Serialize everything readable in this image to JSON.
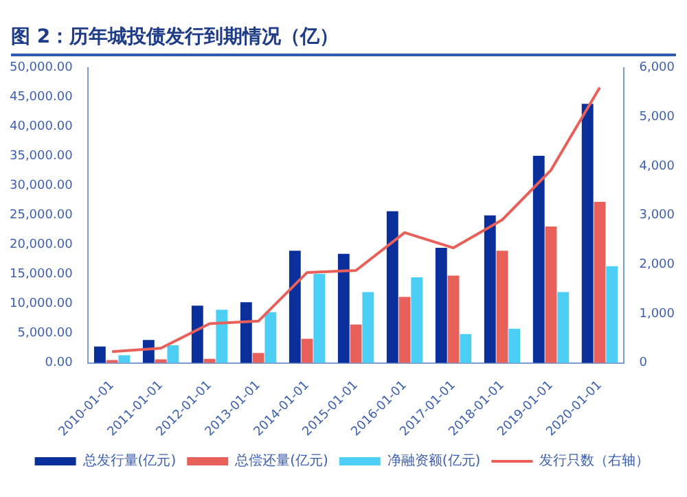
{
  "chart_data": {
    "type": "bar",
    "title": "图 2：历年城投债发行到期情况（亿）",
    "categories": [
      "2010-01-01",
      "2011-01-01",
      "2012-01-01",
      "2013-01-01",
      "2014-01-01",
      "2015-01-01",
      "2016-01-01",
      "2017-01-01",
      "2018-01-01",
      "2019-01-01",
      "2020-01-01"
    ],
    "series": [
      {
        "name": "总发行量(亿元)",
        "color": "#0a2f9a",
        "values": [
          2800,
          3900,
          9700,
          10300,
          19000,
          18500,
          25700,
          19500,
          25000,
          35100,
          43900
        ]
      },
      {
        "name": "总偿还量(亿元)",
        "color": "#e8605a",
        "values": [
          500,
          600,
          700,
          1700,
          4100,
          6500,
          11200,
          14800,
          19000,
          23100,
          27300
        ]
      },
      {
        "name": "净融资额(亿元)",
        "color": "#4dcff5",
        "values": [
          1300,
          3000,
          9000,
          8600,
          15100,
          12000,
          14500,
          4900,
          5800,
          12000,
          16400
        ]
      },
      {
        "name": "发行只数（右轴）",
        "type": "line",
        "axis": "y2",
        "color": "#e8605a",
        "values": [
          230,
          300,
          800,
          850,
          1840,
          1880,
          2650,
          2340,
          2910,
          3920,
          5600
        ]
      }
    ],
    "ylim": [
      0,
      50000
    ],
    "yticks": [
      {
        "value": 0,
        "label": "0.00"
      },
      {
        "value": 5000,
        "label": "5,000.00"
      },
      {
        "value": 10000,
        "label": "10,000.00"
      },
      {
        "value": 15000,
        "label": "15,000.00"
      },
      {
        "value": 20000,
        "label": "20,000.00"
      },
      {
        "value": 25000,
        "label": "25,000.00"
      },
      {
        "value": 30000,
        "label": "30,000.00"
      },
      {
        "value": 35000,
        "label": "35,000.00"
      },
      {
        "value": 40000,
        "label": "40,000.00"
      },
      {
        "value": 45000,
        "label": "45,000.00"
      },
      {
        "value": 50000,
        "label": "50,000.00"
      }
    ],
    "y2lim": [
      0,
      6000
    ],
    "y2ticks": [
      0,
      {
        "value": 1000,
        "label": "1,000"
      },
      {
        "value": 2000,
        "label": "2,000"
      },
      {
        "value": 3000,
        "label": "3,000"
      },
      {
        "value": 4000,
        "label": "4,000"
      },
      {
        "value": 5000,
        "label": "5,000"
      },
      {
        "value": 6000,
        "label": "6,000"
      }
    ],
    "grid": false,
    "legend": "bottom"
  }
}
